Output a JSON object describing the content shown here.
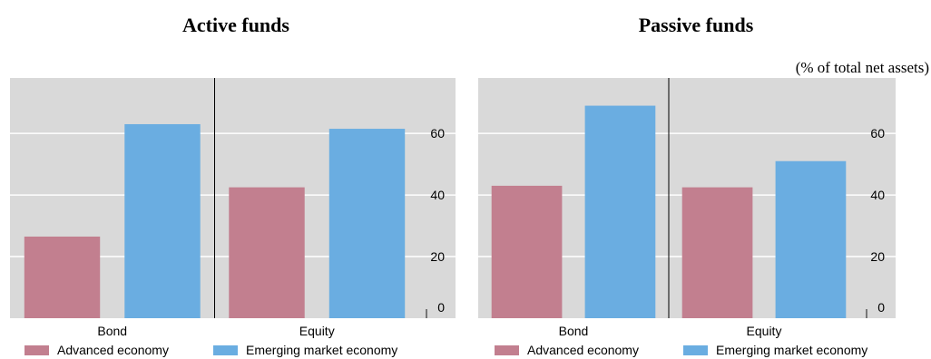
{
  "units_note": "(% of total net assets)",
  "colors": {
    "advanced": "#c27f8f",
    "emerging": "#6aade1",
    "plot_bg": "#d9d9d9",
    "grid": "#ffffff"
  },
  "chart_data": [
    {
      "type": "bar",
      "title": "Active funds",
      "categories": [
        "Bond",
        "Equity"
      ],
      "series": [
        {
          "name": "Advanced economy",
          "values": [
            26.5,
            42.5
          ]
        },
        {
          "name": "Emerging market economy",
          "values": [
            63,
            61.5
          ]
        }
      ],
      "yticks": [
        0,
        20,
        40,
        60
      ],
      "ylim": [
        0,
        78
      ],
      "grid": true,
      "legend": "bottom"
    },
    {
      "type": "bar",
      "title": "Passive funds",
      "categories": [
        "Bond",
        "Equity"
      ],
      "series": [
        {
          "name": "Advanced economy",
          "values": [
            43,
            42.5
          ]
        },
        {
          "name": "Emerging market economy",
          "values": [
            69,
            51
          ]
        }
      ],
      "yticks": [
        0,
        20,
        40,
        60
      ],
      "ylim": [
        0,
        78
      ],
      "grid": true,
      "legend": "bottom"
    }
  ]
}
